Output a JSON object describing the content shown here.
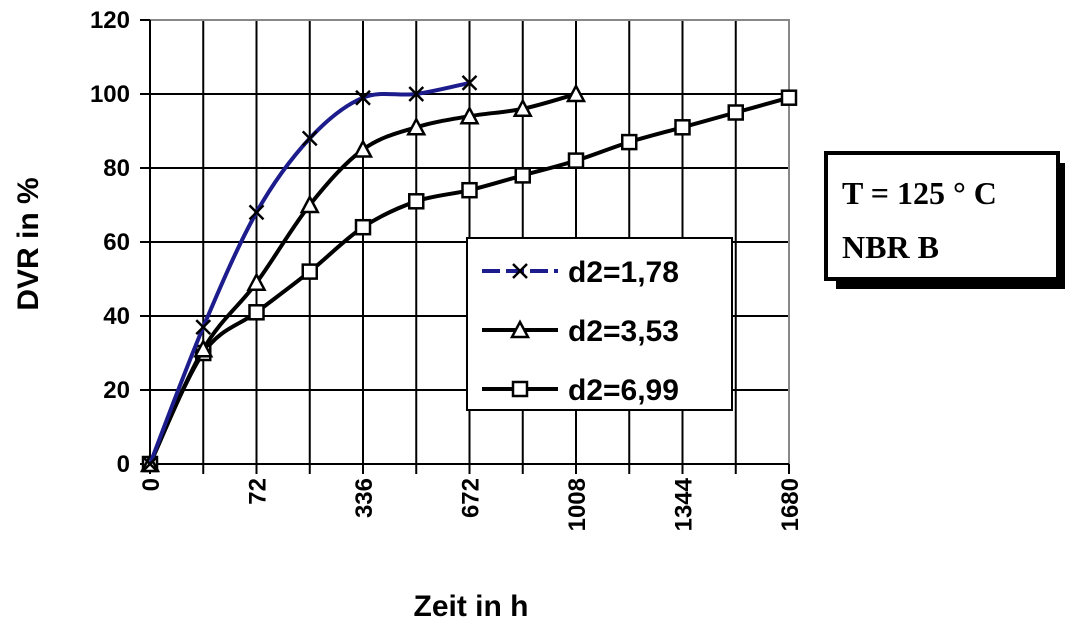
{
  "chart_data": {
    "type": "line",
    "xlabel": "Zeit in h",
    "ylabel": "DVR in %",
    "ylim": [
      0,
      120
    ],
    "yticks": [
      "0",
      "20",
      "40",
      "60",
      "80",
      "100",
      "120"
    ],
    "x_tick_labels": [
      "0",
      "72",
      "336",
      "672",
      "1008",
      "1344",
      "1680"
    ],
    "x_tick_positions": [
      0,
      2,
      4,
      6,
      8,
      10,
      12
    ],
    "xlim": [
      0,
      12
    ],
    "grid": true,
    "legend_position": "right-center",
    "series": [
      {
        "name": "d2=1,78",
        "marker": "x",
        "color": "#1c1c8c",
        "x": [
          0,
          1,
          2,
          3,
          4,
          5,
          6
        ],
        "y": [
          0,
          37,
          68,
          88,
          99,
          100,
          103
        ]
      },
      {
        "name": "d2=3,53",
        "marker": "triangle",
        "color": "#000000",
        "x": [
          0,
          1,
          2,
          3,
          4,
          5,
          6,
          7,
          8
        ],
        "y": [
          0,
          31,
          49,
          70,
          85,
          91,
          94,
          96,
          100
        ]
      },
      {
        "name": "d2=6,99",
        "marker": "square",
        "color": "#000000",
        "x": [
          0,
          1,
          2,
          3,
          4,
          5,
          6,
          7,
          8,
          9,
          10,
          11,
          12
        ],
        "y": [
          0,
          30,
          41,
          52,
          64,
          71,
          74,
          78,
          82,
          87,
          91,
          95,
          99
        ]
      }
    ],
    "annotation": [
      "T = 125 ° C",
      "NBR B"
    ]
  }
}
